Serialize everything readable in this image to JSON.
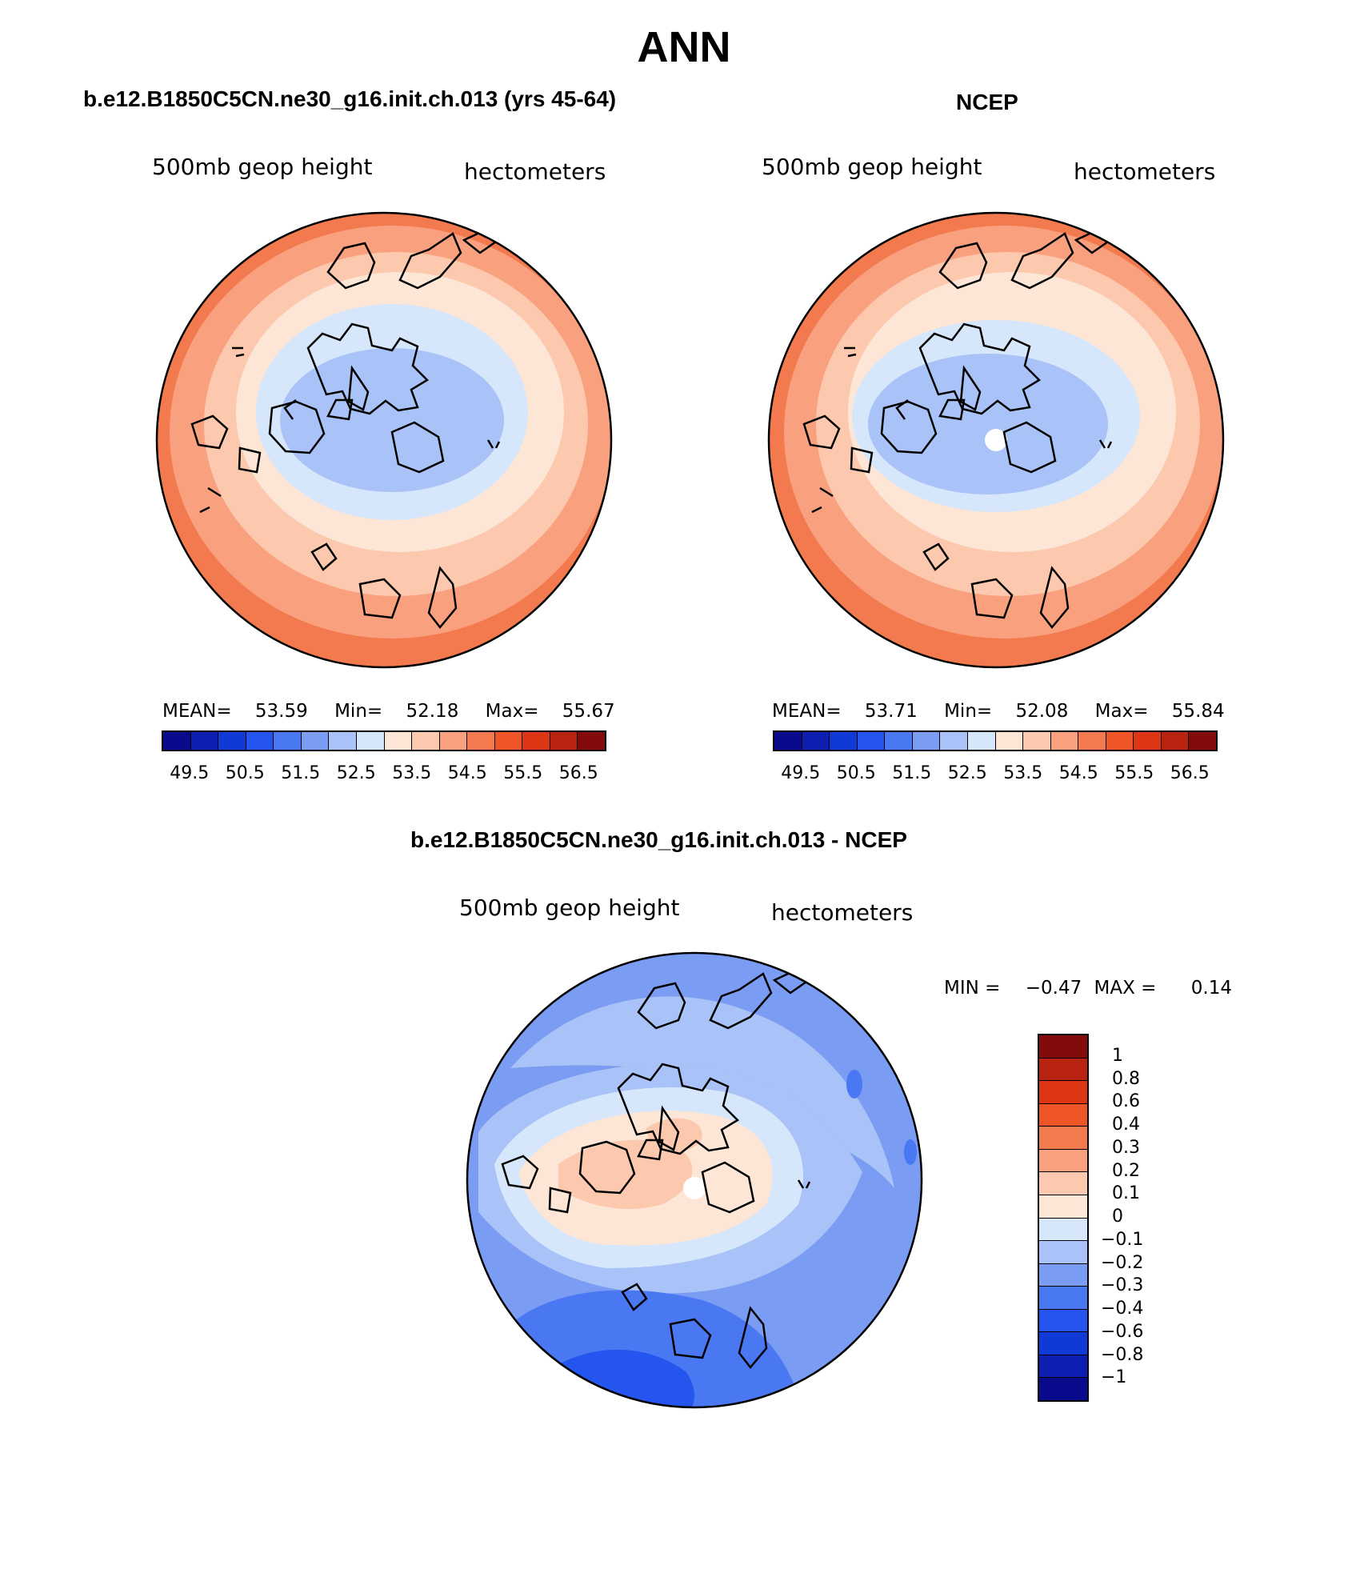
{
  "title": "ANN",
  "panels": {
    "model": {
      "title": "b.e12.B1850C5CN.ne30_g16.init.ch.013 (yrs 45-64)",
      "left_label": "500mb geop height",
      "right_label": "hectometers",
      "stats": {
        "mean_label": "MEAN=",
        "mean": "53.59",
        "min_label": "Min=",
        "min": "52.18",
        "max_label": "Max=",
        "max": "55.67"
      }
    },
    "obs": {
      "title": "NCEP",
      "left_label": "500mb geop height",
      "right_label": "hectometers",
      "stats": {
        "mean_label": "MEAN=",
        "mean": "53.71",
        "min_label": "Min=",
        "min": "52.08",
        "max_label": "Max=",
        "max": "55.84"
      }
    },
    "diff": {
      "title": "b.e12.B1850C5CN.ne30_g16.init.ch.013 - NCEP",
      "left_label": "500mb geop height",
      "right_label": "hectometers",
      "stats": {
        "min_label": "MIN =",
        "min": "−0.47",
        "max_label": "MAX =",
        "max": "0.14"
      }
    }
  },
  "abs_colorbar": {
    "colors": [
      "#0a0a8c",
      "#0c1fb0",
      "#0f3ad8",
      "#2456ef",
      "#4a78f2",
      "#7a9cf2",
      "#a9c2f7",
      "#d6e6fb",
      "#fde6d6",
      "#fcc8ae",
      "#f9a07e",
      "#f37a4e",
      "#ee5628",
      "#de3614",
      "#b92410",
      "#820c0c"
    ],
    "tick_labels": [
      "49.5",
      "50.5",
      "51.5",
      "52.5",
      "53.5",
      "54.5",
      "55.5",
      "56.5"
    ]
  },
  "diff_colorbar": {
    "colors": [
      "#820c0c",
      "#b92410",
      "#de3614",
      "#ee5628",
      "#f37a4e",
      "#f9a07e",
      "#fcc8ae",
      "#fde6d6",
      "#d6e6fb",
      "#a9c2f7",
      "#7a9cf2",
      "#4a78f2",
      "#2456ef",
      "#0f3ad8",
      "#0c1fb0",
      "#0a0a8c"
    ],
    "tick_labels": [
      "1",
      "0.8",
      "0.6",
      "0.4",
      "0.3",
      "0.2",
      "0.1",
      "0",
      "−0.1",
      "−0.2",
      "−0.3",
      "−0.4",
      "−0.6",
      "−0.8",
      "−1"
    ]
  }
}
